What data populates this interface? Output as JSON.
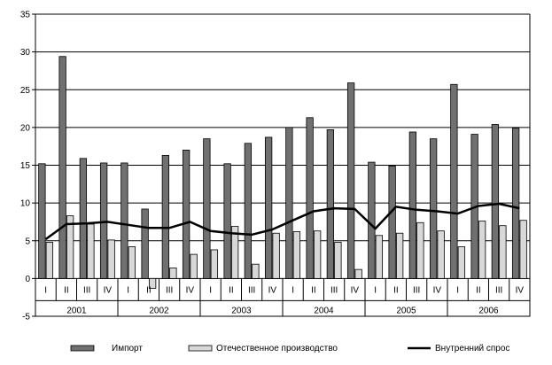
{
  "chart_data": {
    "type": "bar",
    "x_quarter_labels": [
      "I",
      "II",
      "III",
      "IV",
      "I",
      "II",
      "III",
      "IV",
      "I",
      "II",
      "III",
      "IV",
      "I",
      "II",
      "III",
      "IV",
      "I",
      "II",
      "III",
      "IV",
      "I",
      "II",
      "III",
      "IV"
    ],
    "x_year_labels": [
      "2001",
      "2002",
      "2003",
      "2004",
      "2005",
      "2006"
    ],
    "y_ticks": [
      "-5",
      "0",
      "5",
      "10",
      "15",
      "20",
      "25",
      "30",
      "35"
    ],
    "ylim": [
      -5,
      35
    ],
    "grid": true,
    "legend_position": "bottom",
    "series": [
      {
        "name": "Импорт",
        "type": "bar",
        "color": "#707070",
        "values": [
          15.2,
          29.4,
          15.9,
          15.3,
          15.3,
          9.2,
          16.3,
          17.0,
          18.5,
          15.2,
          17.9,
          18.7,
          20.0,
          21.3,
          19.7,
          25.9,
          15.4,
          14.9,
          19.4,
          18.5,
          25.7,
          19.1,
          20.4,
          19.9
        ]
      },
      {
        "name": "Отечественное производство",
        "type": "bar",
        "color": "#d8d8d8",
        "values": [
          4.8,
          8.3,
          7.2,
          5.1,
          4.2,
          -1.3,
          1.4,
          3.2,
          3.8,
          6.9,
          1.9,
          6.0,
          6.2,
          6.3,
          4.8,
          1.2,
          5.7,
          6.0,
          7.4,
          6.3,
          4.2,
          7.6,
          7.0,
          7.7
        ]
      },
      {
        "name": "Внутренний спрос",
        "type": "line",
        "color": "#000000",
        "values": [
          5.2,
          7.2,
          7.3,
          7.5,
          7.1,
          6.7,
          6.7,
          7.5,
          6.3,
          6.0,
          5.8,
          6.5,
          7.7,
          8.9,
          9.3,
          9.2,
          6.6,
          9.5,
          9.1,
          8.9,
          8.6,
          9.6,
          9.9,
          9.3
        ]
      }
    ]
  }
}
